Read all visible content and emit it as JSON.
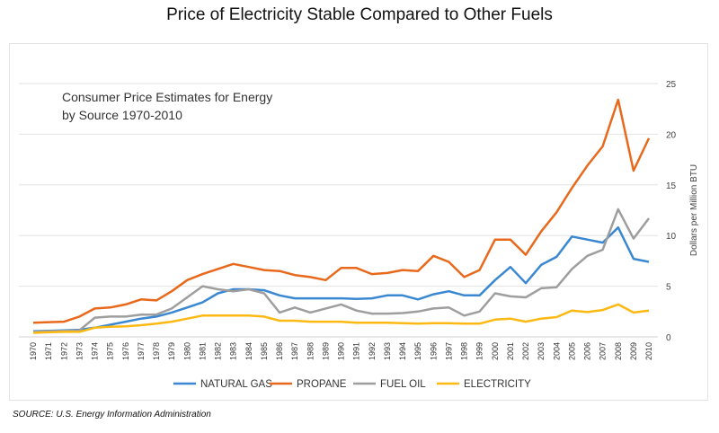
{
  "title": "Price of Electricity Stable Compared to Other Fuels",
  "source": "SOURCE: U.S. Energy Information Administration",
  "chart_data": {
    "type": "line",
    "title": "",
    "annotation": [
      "Consumer Price Estimates for Energy",
      "by Source 1970-2010"
    ],
    "xlabel": "",
    "ylabel": "Dollars per Million BTU",
    "ylim": [
      0,
      25
    ],
    "yticks": [
      0,
      5,
      10,
      15,
      20,
      25
    ],
    "y_axis_side": "right",
    "grid": true,
    "legend": "bottom",
    "x": [
      1970,
      1971,
      1972,
      1973,
      1974,
      1975,
      1976,
      1977,
      1978,
      1979,
      1980,
      1981,
      1982,
      1983,
      1984,
      1985,
      1986,
      1987,
      1988,
      1989,
      1990,
      1991,
      1992,
      1993,
      1994,
      1995,
      1996,
      1997,
      1998,
      1999,
      2000,
      2001,
      2002,
      2003,
      2004,
      2005,
      2006,
      2007,
      2008,
      2009,
      2010
    ],
    "series": [
      {
        "name": "NATURAL GAS",
        "color": "#3a87d2",
        "values": [
          0.55,
          0.6,
          0.65,
          0.7,
          0.9,
          1.2,
          1.5,
          1.8,
          2.0,
          2.4,
          2.9,
          3.4,
          4.3,
          4.7,
          4.7,
          4.6,
          4.1,
          3.8,
          3.8,
          3.8,
          3.8,
          3.75,
          3.8,
          4.1,
          4.1,
          3.7,
          4.2,
          4.5,
          4.1,
          4.1,
          5.6,
          6.9,
          5.3,
          7.1,
          7.9,
          9.9,
          9.6,
          9.3,
          10.8,
          7.7,
          7.4
        ]
      },
      {
        "name": "PROPANE",
        "color": "#e8691c",
        "values": [
          1.4,
          1.45,
          1.5,
          2.0,
          2.8,
          2.9,
          3.2,
          3.7,
          3.6,
          4.5,
          5.6,
          6.2,
          6.7,
          7.2,
          6.9,
          6.6,
          6.5,
          6.1,
          5.9,
          5.6,
          6.8,
          6.8,
          6.2,
          6.3,
          6.6,
          6.5,
          8.0,
          7.4,
          5.9,
          6.6,
          9.6,
          9.6,
          8.1,
          10.4,
          12.3,
          14.7,
          16.9,
          18.8,
          23.4,
          16.4,
          19.6
        ]
      },
      {
        "name": "FUEL OIL",
        "color": "#9e9e9e",
        "values": [
          0.5,
          0.55,
          0.6,
          0.65,
          1.9,
          2.0,
          2.0,
          2.2,
          2.2,
          2.8,
          3.9,
          5.0,
          4.7,
          4.5,
          4.7,
          4.3,
          2.4,
          2.9,
          2.4,
          2.8,
          3.2,
          2.6,
          2.3,
          2.3,
          2.35,
          2.5,
          2.8,
          2.9,
          2.1,
          2.5,
          4.3,
          4.0,
          3.9,
          4.8,
          4.9,
          6.7,
          8.0,
          8.6,
          12.6,
          9.7,
          11.7
        ]
      },
      {
        "name": "ELECTRICITY",
        "color": "#fdb913",
        "values": [
          0.4,
          0.45,
          0.5,
          0.5,
          0.9,
          1.0,
          1.05,
          1.15,
          1.3,
          1.5,
          1.8,
          2.1,
          2.1,
          2.1,
          2.1,
          2.0,
          1.6,
          1.6,
          1.5,
          1.5,
          1.5,
          1.4,
          1.4,
          1.4,
          1.35,
          1.3,
          1.35,
          1.35,
          1.3,
          1.3,
          1.7,
          1.8,
          1.5,
          1.8,
          1.95,
          2.6,
          2.45,
          2.65,
          3.2,
          2.4,
          2.6
        ]
      }
    ]
  }
}
